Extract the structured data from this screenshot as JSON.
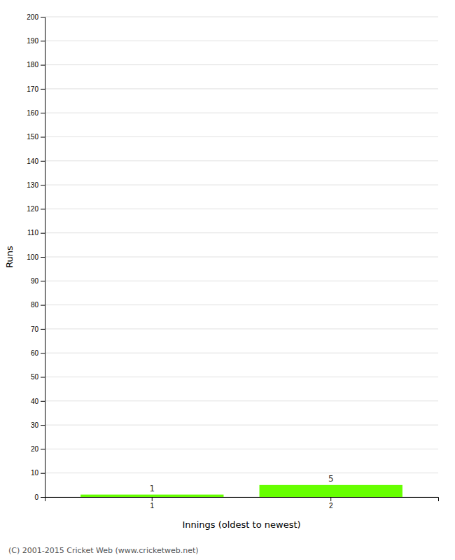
{
  "chart_data": {
    "type": "bar",
    "xlabel": "Innings (oldest to newest)",
    "ylabel": "Runs",
    "categories": [
      "1",
      "2"
    ],
    "values": [
      1,
      5
    ],
    "color": "#66ff00",
    "data_labels": true,
    "ylim": [
      0,
      200
    ],
    "yticks": [
      0,
      10,
      20,
      30,
      40,
      50,
      60,
      70,
      80,
      90,
      100,
      110,
      120,
      130,
      140,
      150,
      160,
      170,
      180,
      190,
      200
    ],
    "grid": true,
    "annotations": [
      "(C) 2001-2015 Cricket Web (www.cricketweb.net)"
    ]
  }
}
